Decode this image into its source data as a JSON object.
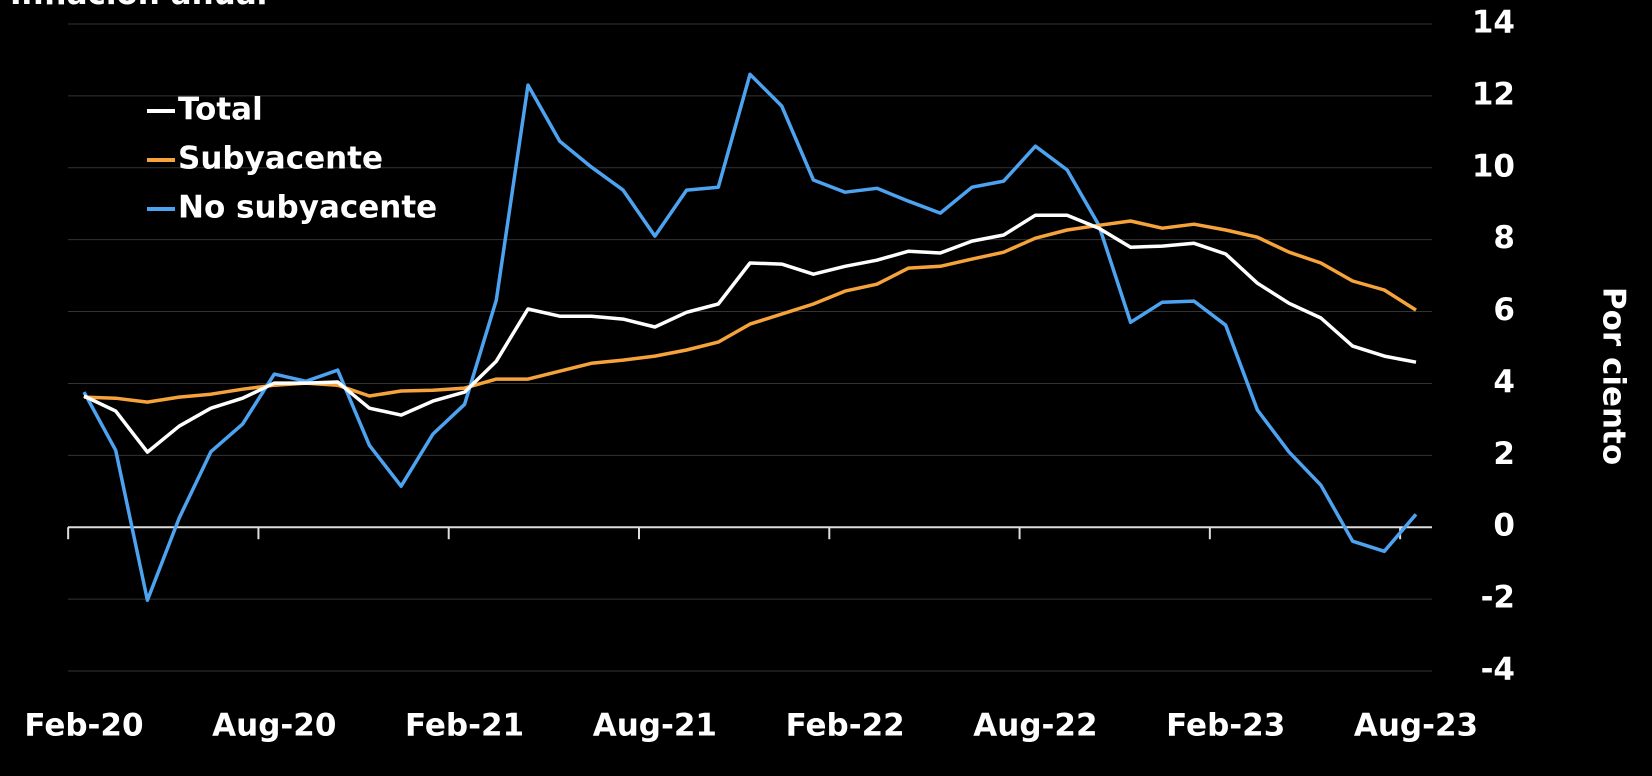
{
  "chart_data": {
    "type": "line",
    "title": "Inflación anual",
    "y_axis_label": "Por ciento",
    "categories": [
      "Feb-20",
      null,
      null,
      null,
      null,
      null,
      "Aug-20",
      null,
      null,
      null,
      null,
      null,
      "Feb-21",
      null,
      null,
      null,
      null,
      null,
      "Aug-21",
      null,
      null,
      null,
      null,
      null,
      "Feb-22",
      null,
      null,
      null,
      null,
      null,
      "Aug-22",
      null,
      null,
      null,
      null,
      null,
      "Feb-23",
      null,
      null,
      null,
      null,
      null,
      "Aug-23"
    ],
    "series": [
      {
        "name": "Total",
        "color": "#ffffff",
        "values": [
          3.65,
          3.23,
          2.09,
          2.81,
          3.31,
          3.59,
          4.01,
          4.01,
          4.04,
          3.31,
          3.12,
          3.51,
          3.76,
          4.62,
          6.07,
          5.87,
          5.87,
          5.79,
          5.57,
          5.98,
          6.21,
          7.35,
          7.32,
          7.04,
          7.26,
          7.43,
          7.68,
          7.63,
          7.96,
          8.13,
          8.68,
          8.68,
          8.32,
          7.79,
          7.82,
          7.9,
          7.6,
          6.79,
          6.23,
          5.82,
          5.04,
          4.76,
          4.59
        ]
      },
      {
        "name": "Subyacente",
        "color": "#f5a33a",
        "values": [
          3.62,
          3.59,
          3.48,
          3.62,
          3.7,
          3.84,
          3.95,
          4.01,
          3.95,
          3.65,
          3.79,
          3.81,
          3.87,
          4.12,
          4.12,
          4.34,
          4.56,
          4.65,
          4.76,
          4.93,
          5.15,
          5.65,
          5.93,
          6.21,
          6.57,
          6.76,
          7.21,
          7.26,
          7.46,
          7.65,
          8.04,
          8.27,
          8.4,
          8.52,
          8.32,
          8.43,
          8.27,
          8.07,
          7.65,
          7.35,
          6.85,
          6.6,
          6.04
        ]
      },
      {
        "name": "No subyacente",
        "color": "#4da3f0",
        "values": [
          3.76,
          2.14,
          -2.03,
          0.25,
          2.1,
          2.87,
          4.26,
          4.06,
          4.37,
          2.28,
          1.14,
          2.59,
          3.42,
          6.32,
          12.3,
          10.74,
          10.02,
          9.38,
          8.1,
          9.38,
          9.46,
          12.6,
          11.72,
          9.66,
          9.32,
          9.43,
          9.07,
          8.74,
          9.46,
          9.63,
          10.6,
          9.94,
          8.4,
          5.7,
          6.26,
          6.29,
          5.62,
          3.26,
          2.09,
          1.17,
          -0.39,
          -0.67,
          0.36
        ]
      }
    ],
    "ylim": [
      -4,
      14
    ],
    "yticks": [
      -4,
      -2,
      0,
      2,
      4,
      6,
      8,
      10,
      12,
      14
    ],
    "grid": true,
    "legend": "upper left"
  }
}
